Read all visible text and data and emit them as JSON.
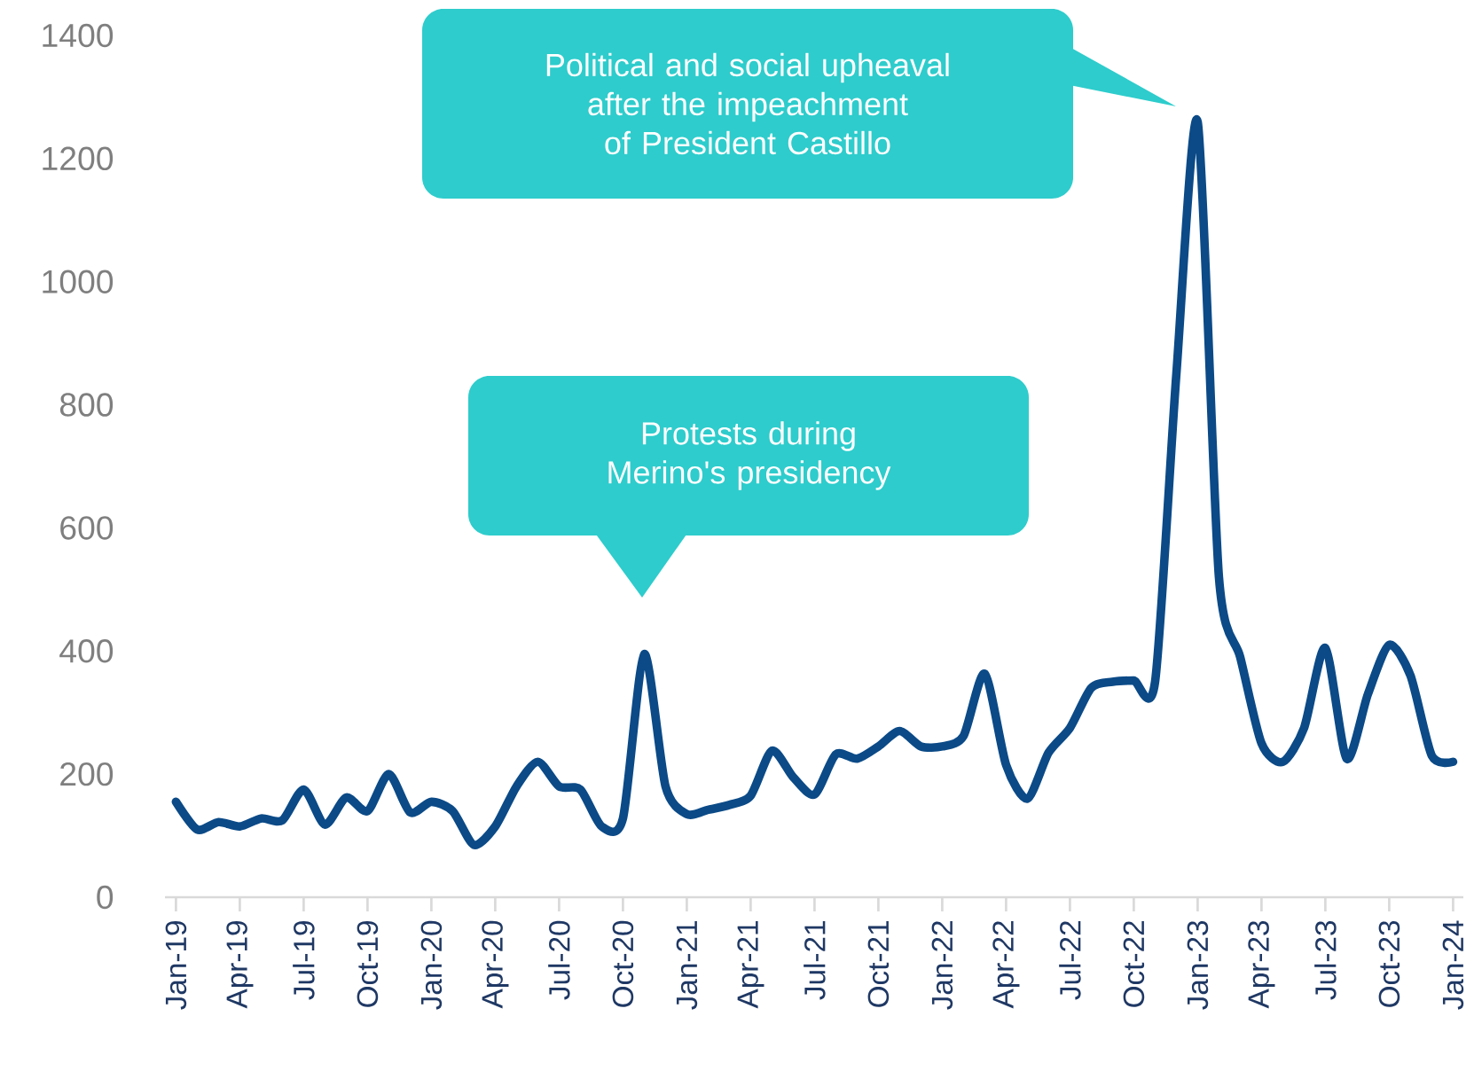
{
  "chart_data": {
    "type": "line",
    "x": [
      "2019-01",
      "2019-02",
      "2019-03",
      "2019-04",
      "2019-05",
      "2019-06",
      "2019-07",
      "2019-08",
      "2019-09",
      "2019-10",
      "2019-11",
      "2019-12",
      "2020-01",
      "2020-02",
      "2020-03",
      "2020-04",
      "2020-05",
      "2020-06",
      "2020-07",
      "2020-08",
      "2020-09",
      "2020-10",
      "2020-11",
      "2020-12",
      "2021-01",
      "2021-02",
      "2021-03",
      "2021-04",
      "2021-05",
      "2021-06",
      "2021-07",
      "2021-08",
      "2021-09",
      "2021-10",
      "2021-11",
      "2021-12",
      "2022-01",
      "2022-02",
      "2022-03",
      "2022-04",
      "2022-05",
      "2022-06",
      "2022-07",
      "2022-08",
      "2022-09",
      "2022-10",
      "2022-11",
      "2022-12",
      "2023-01",
      "2023-02",
      "2023-03",
      "2023-04",
      "2023-05",
      "2023-06",
      "2023-07",
      "2023-08",
      "2023-09",
      "2023-10",
      "2023-11",
      "2023-12",
      "2024-01"
    ],
    "series": [
      {
        "color": "#0b4a87",
        "values": [
          155,
          110,
          122,
          115,
          128,
          125,
          175,
          118,
          162,
          140,
          200,
          138,
          155,
          140,
          85,
          115,
          180,
          220,
          180,
          175,
          115,
          128,
          395,
          180,
          135,
          142,
          150,
          165,
          238,
          195,
          167,
          232,
          225,
          245,
          270,
          245,
          245,
          262,
          363,
          215,
          160,
          235,
          275,
          340,
          350,
          352,
          350,
          850,
          1260,
          520,
          390,
          250,
          220,
          275,
          405,
          225,
          330,
          410,
          360,
          230,
          220
        ]
      }
    ],
    "xlim": [
      "2018-12-16",
      "2024-01-16"
    ],
    "xticks": [
      {
        "value": "2019-01",
        "label": "Jan-19"
      },
      {
        "value": "2019-04",
        "label": "Apr-19"
      },
      {
        "value": "2019-07",
        "label": "Jul-19"
      },
      {
        "value": "2019-10",
        "label": "Oct-19"
      },
      {
        "value": "2020-01",
        "label": "Jan-20"
      },
      {
        "value": "2020-04",
        "label": "Apr-20"
      },
      {
        "value": "2020-07",
        "label": "Jul-20"
      },
      {
        "value": "2020-10",
        "label": "Oct-20"
      },
      {
        "value": "2021-01",
        "label": "Jan-21"
      },
      {
        "value": "2021-04",
        "label": "Apr-21"
      },
      {
        "value": "2021-07",
        "label": "Jul-21"
      },
      {
        "value": "2021-10",
        "label": "Oct-21"
      },
      {
        "value": "2022-01",
        "label": "Jan-22"
      },
      {
        "value": "2022-04",
        "label": "Apr-22"
      },
      {
        "value": "2022-07",
        "label": "Jul-22"
      },
      {
        "value": "2022-10",
        "label": "Oct-22"
      },
      {
        "value": "2023-01",
        "label": "Jan-23"
      },
      {
        "value": "2023-04",
        "label": "Apr-23"
      },
      {
        "value": "2023-07",
        "label": "Jul-23"
      },
      {
        "value": "2023-10",
        "label": "Oct-23"
      },
      {
        "value": "2024-01",
        "label": "Jan-24"
      }
    ],
    "ylim": [
      0,
      1400
    ],
    "yticks": [
      0,
      200,
      400,
      600,
      800,
      1000,
      1200,
      1400
    ],
    "annotations": [
      "Political and social upheaval after the impeachment of President Castillo",
      "Protests during Merino's presidency"
    ]
  }
}
